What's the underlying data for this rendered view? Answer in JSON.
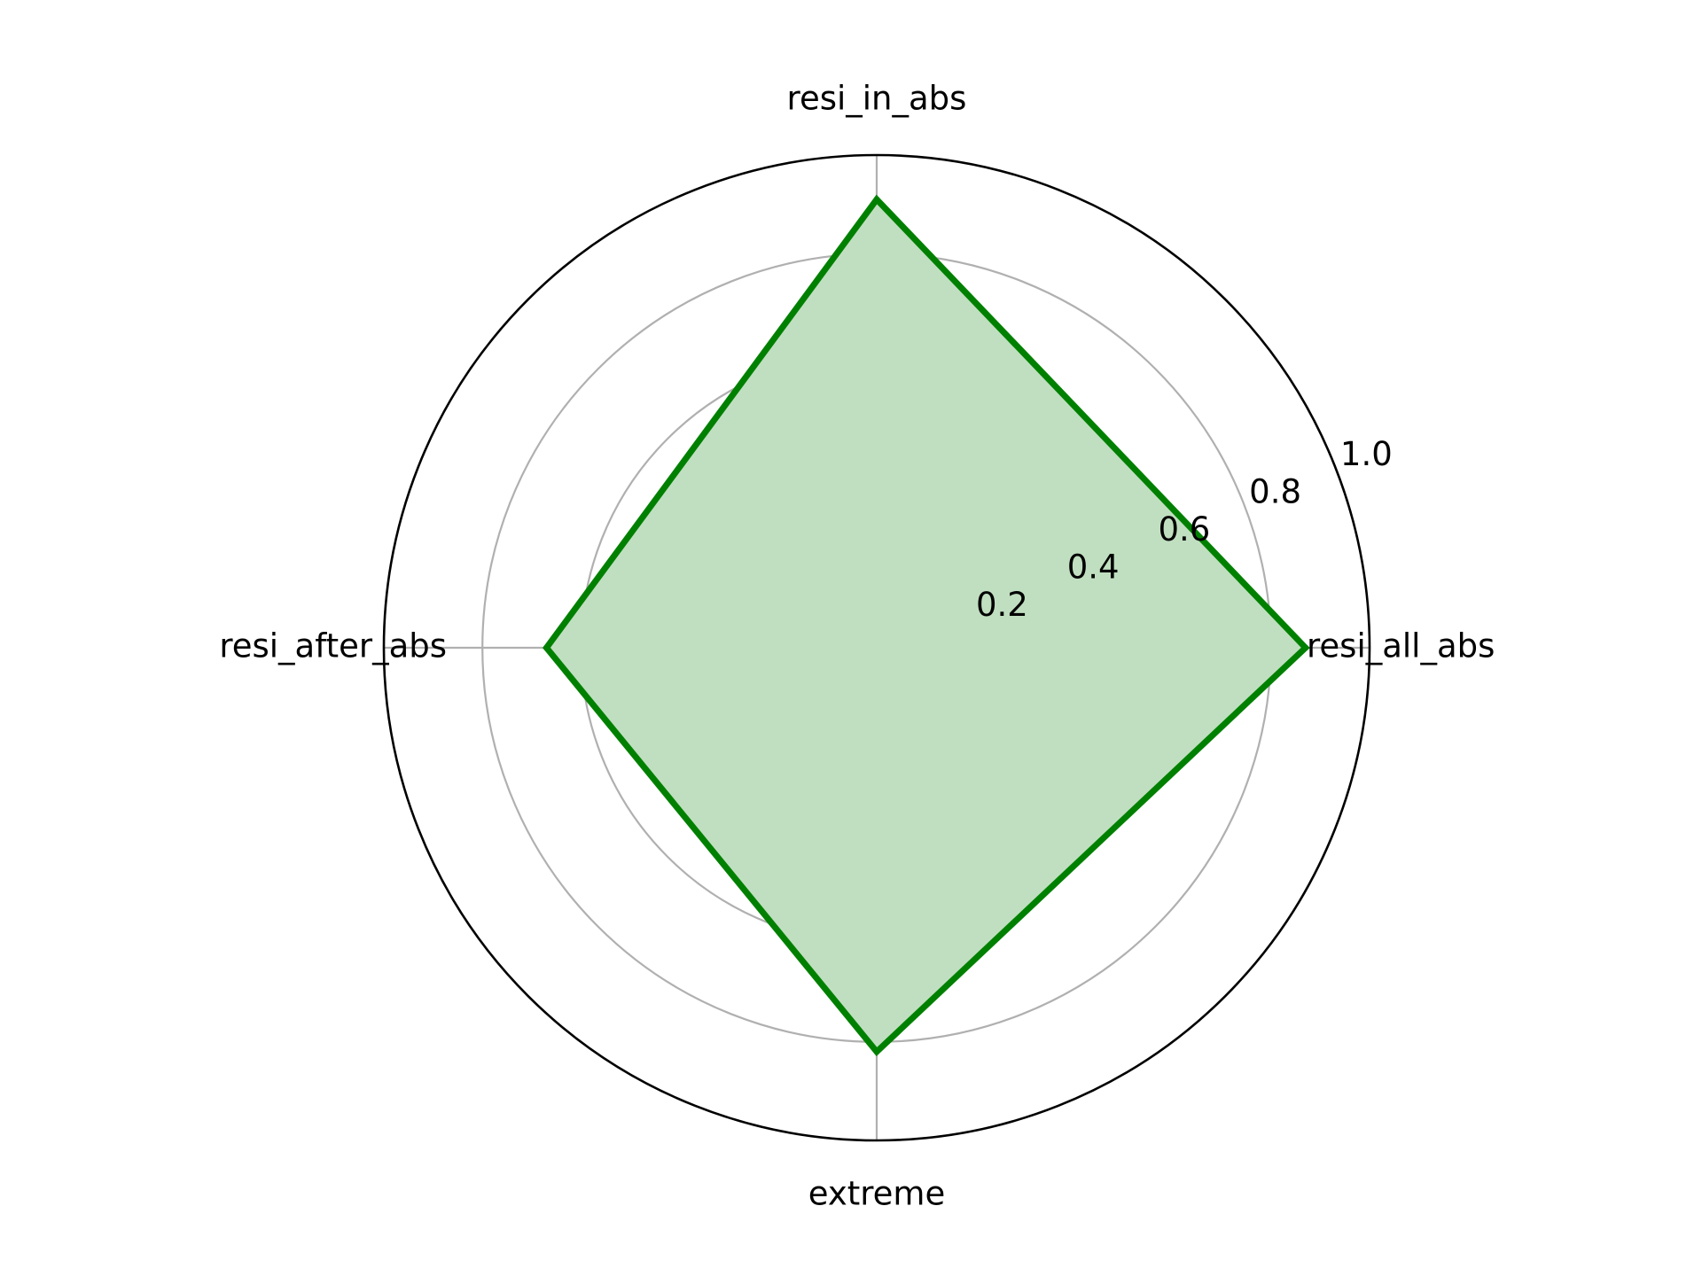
{
  "chart_data": {
    "type": "radar",
    "categories": [
      "resi_all_abs",
      "resi_in_abs",
      "resi_after_abs",
      "extreme"
    ],
    "series": [
      {
        "values": [
          0.87,
          0.91,
          0.67,
          0.82
        ],
        "color": "#008000",
        "fill": "#c0dfc0"
      }
    ],
    "rlim": [
      0,
      1.0
    ],
    "rticks": [
      0.2,
      0.4,
      0.6,
      0.8,
      1.0
    ],
    "rtick_labels": [
      "0.2",
      "0.4",
      "0.6",
      "0.8",
      "1.0"
    ],
    "grid": true,
    "grid_color": "#b0b0b0",
    "outer_circle_color": "#000000"
  }
}
